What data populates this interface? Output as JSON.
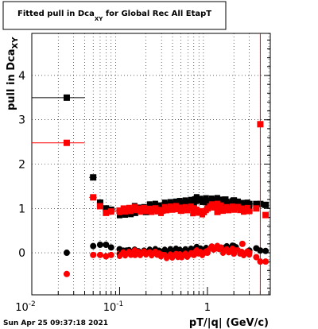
{
  "title_box": {
    "prefix": "Fitted pull in Dca",
    "sub": "XY",
    "suffix": " for Global Rec All EtapT"
  },
  "footer": {
    "timestamp": "Sun Apr 25 09:37:18 2021"
  },
  "chart_data": {
    "type": "scatter",
    "title": "Fitted pull in Dca_XY for Global Rec All EtapT",
    "xlabel": "pT/|q| (GeV/c)",
    "ylabel": "pull in Dca_XY",
    "xscale": "log",
    "xlim": [
      0.01,
      5.2
    ],
    "ylim": [
      -0.95,
      4.95
    ],
    "grid": true,
    "x_ticks": [
      {
        "v": 0.01,
        "base": "10",
        "exp": "-2"
      },
      {
        "v": 0.1,
        "base": "10",
        "exp": "-1"
      },
      {
        "v": 1,
        "base": "1",
        "exp": ""
      }
    ],
    "y_ticks": [
      0,
      1,
      2,
      3,
      4
    ],
    "series": [
      {
        "color": "#000000",
        "marker": "square",
        "x": [
          0.025,
          0.05,
          0.06,
          0.07,
          0.08,
          0.1,
          0.12,
          0.15,
          0.2,
          0.3,
          0.4,
          0.5,
          0.7,
          1.0,
          1.3,
          1.6,
          2.0,
          2.5,
          3.0,
          3.6,
          4.0,
          4.6
        ],
        "y": [
          3.5,
          1.7,
          1.13,
          1.0,
          0.97,
          0.95,
          0.92,
          0.9,
          0.92,
          0.97,
          1.0,
          1.05,
          1.1,
          1.15,
          1.18,
          1.2,
          1.18,
          1.12,
          1.1,
          1.1,
          1.1,
          1.08
        ],
        "xerr": [
          [
            0.01,
            0.04
          ],
          [
            0.045,
            0.055
          ],
          [
            0.055,
            0.065
          ],
          [
            0.065,
            0.075
          ],
          [
            0.075,
            0.09
          ],
          [
            0.09,
            0.11
          ],
          [
            0.11,
            0.13
          ],
          [
            0.13,
            0.17
          ],
          [
            0.17,
            0.23
          ],
          [
            0.25,
            0.35
          ],
          [
            0.35,
            0.45
          ],
          [
            0.45,
            0.55
          ],
          [
            0.6,
            0.8
          ],
          [
            0.9,
            1.1
          ],
          [
            1.2,
            1.4
          ],
          [
            1.5,
            1.7
          ],
          [
            1.8,
            2.2
          ],
          [
            2.3,
            2.7
          ],
          [
            2.7,
            3.3
          ],
          [
            3.3,
            3.9
          ],
          [
            3.8,
            4.2
          ],
          [
            4.4,
            5.0
          ]
        ]
      },
      {
        "color": "#ff0000",
        "marker": "square",
        "x": [
          0.025,
          0.05,
          0.06,
          0.07,
          0.08,
          0.1,
          0.12,
          0.15,
          0.2,
          0.3,
          0.4,
          0.5,
          0.7,
          1.0,
          1.3,
          1.6,
          2.0,
          2.5,
          3.0,
          3.6,
          4.0,
          4.6
        ],
        "y": [
          2.48,
          1.25,
          1.05,
          0.9,
          0.93,
          0.95,
          0.98,
          1.0,
          0.98,
          0.97,
          0.98,
          0.95,
          1.0,
          1.0,
          0.92,
          1.05,
          1.0,
          0.98,
          0.95,
          1.0,
          2.9,
          0.85
        ],
        "xerr": [
          [
            0.01,
            0.04
          ],
          [
            0.045,
            0.055
          ],
          [
            0.055,
            0.065
          ],
          [
            0.065,
            0.075
          ],
          [
            0.075,
            0.09
          ],
          [
            0.09,
            0.11
          ],
          [
            0.11,
            0.13
          ],
          [
            0.13,
            0.17
          ],
          [
            0.17,
            0.23
          ],
          [
            0.25,
            0.35
          ],
          [
            0.35,
            0.45
          ],
          [
            0.45,
            0.55
          ],
          [
            0.6,
            0.8
          ],
          [
            0.9,
            1.1
          ],
          [
            1.2,
            1.4
          ],
          [
            1.5,
            1.7
          ],
          [
            1.8,
            2.2
          ],
          [
            2.3,
            2.7
          ],
          [
            2.7,
            3.3
          ],
          [
            3.3,
            3.9
          ],
          [
            3.8,
            4.2
          ],
          [
            4.4,
            5.0
          ]
        ],
        "yerr_tall_at": 4.0
      },
      {
        "color": "#000000",
        "marker": "circle",
        "x": [
          0.025,
          0.05,
          0.06,
          0.07,
          0.08,
          0.1,
          0.12,
          0.15,
          0.2,
          0.3,
          0.4,
          0.5,
          0.7,
          1.0,
          1.3,
          1.6,
          2.0,
          2.5,
          3.0,
          3.6,
          4.0,
          4.6
        ],
        "y": [
          0.0,
          0.15,
          0.18,
          0.18,
          0.12,
          0.08,
          0.05,
          0.03,
          0.02,
          0.02,
          0.03,
          0.04,
          0.05,
          0.08,
          0.1,
          0.12,
          0.15,
          0.0,
          0.05,
          0.1,
          0.05,
          0.04
        ]
      },
      {
        "color": "#ff0000",
        "marker": "circle",
        "x": [
          0.025,
          0.05,
          0.06,
          0.07,
          0.08,
          0.1,
          0.12,
          0.15,
          0.2,
          0.3,
          0.4,
          0.5,
          0.7,
          1.0,
          1.3,
          1.6,
          2.0,
          2.5,
          3.0,
          3.6,
          4.0,
          4.6
        ],
        "y": [
          -0.48,
          -0.05,
          -0.05,
          -0.08,
          -0.05,
          -0.02,
          0.0,
          -0.05,
          -0.02,
          0.0,
          -0.03,
          -0.08,
          -0.05,
          0.0,
          0.1,
          0.05,
          -0.02,
          0.2,
          0.0,
          -0.1,
          -0.2,
          -0.2
        ]
      }
    ]
  }
}
